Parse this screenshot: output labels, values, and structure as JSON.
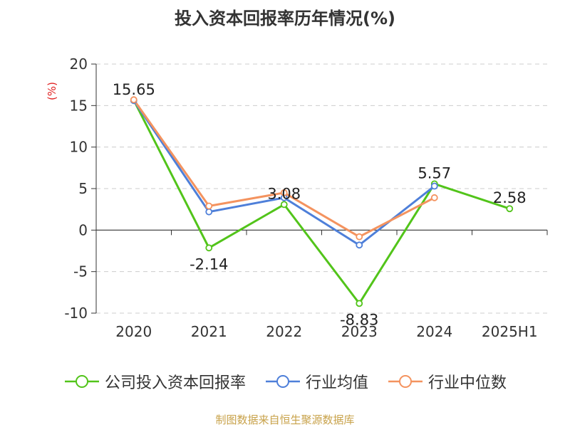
{
  "chart_data": {
    "type": "line",
    "title": "投入资本回报率历年情况(%)",
    "ylabel": "(%)",
    "categories": [
      "2020",
      "2021",
      "2022",
      "2023",
      "2024",
      "2025H1"
    ],
    "ylim": [
      -10,
      20
    ],
    "yticks": [
      -10,
      -5,
      0,
      5,
      10,
      15,
      20
    ],
    "grid": true,
    "legend_position": "bottom",
    "series": [
      {
        "name": "公司投入资本回报率",
        "color": "#52c41a",
        "values": [
          15.65,
          -2.14,
          3.08,
          -8.83,
          5.57,
          2.58
        ],
        "labels": [
          "15.65",
          "-2.14",
          "3.08",
          "-8.83",
          "5.57",
          "2.58"
        ]
      },
      {
        "name": "行业均值",
        "color": "#4e7fd9",
        "values": [
          15.6,
          2.2,
          3.9,
          -1.8,
          5.3,
          null
        ]
      },
      {
        "name": "行业中位数",
        "color": "#f4935f",
        "values": [
          15.7,
          2.9,
          4.5,
          -0.8,
          3.9,
          null
        ]
      }
    ]
  },
  "footer": {
    "source": "制图数据来自恒生聚源数据库"
  }
}
